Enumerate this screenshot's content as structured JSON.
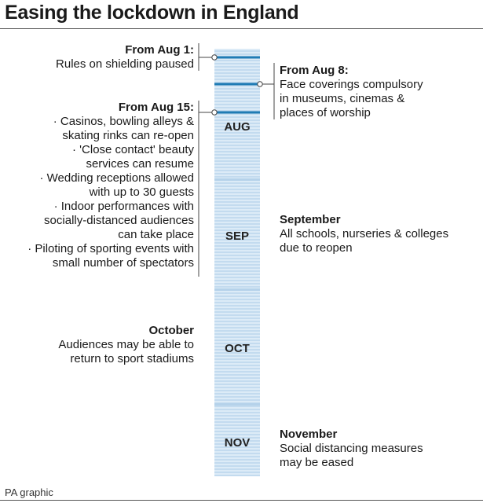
{
  "title": "Easing the lockdown in England",
  "credit": "PA graphic",
  "colors": {
    "accent": "#1f7bb4",
    "stripe_light": "#dcebf7",
    "stripe_dark": "#c3dbef",
    "rule": "#555555"
  },
  "months": [
    "AUG",
    "SEP",
    "OCT",
    "NOV"
  ],
  "events": {
    "aug1": {
      "heading": "From Aug 1:",
      "lines": [
        "Rules on shielding paused"
      ]
    },
    "aug8": {
      "heading": "From Aug 8:",
      "lines": [
        "Face coverings compulsory",
        "in museums, cinemas &",
        "places of worship"
      ]
    },
    "aug15": {
      "heading": "From Aug 15:",
      "lines": [
        "· Casinos, bowling alleys &",
        "skating rinks can re-open",
        "· 'Close contact' beauty",
        "services can resume",
        "· Wedding receptions allowed",
        "with up to 30 guests",
        "· Indoor performances with",
        "socially-distanced audiences",
        "can take place",
        "· Piloting of sporting events with",
        "small number of spectators"
      ]
    },
    "september": {
      "heading": "September",
      "lines": [
        "All schools, nurseries & colleges",
        "due to reopen"
      ]
    },
    "october": {
      "heading": "October",
      "lines": [
        "Audiences may be able to",
        "return to sport stadiums"
      ]
    },
    "november": {
      "heading": "November",
      "lines": [
        "Social distancing measures",
        "may be eased"
      ]
    }
  }
}
